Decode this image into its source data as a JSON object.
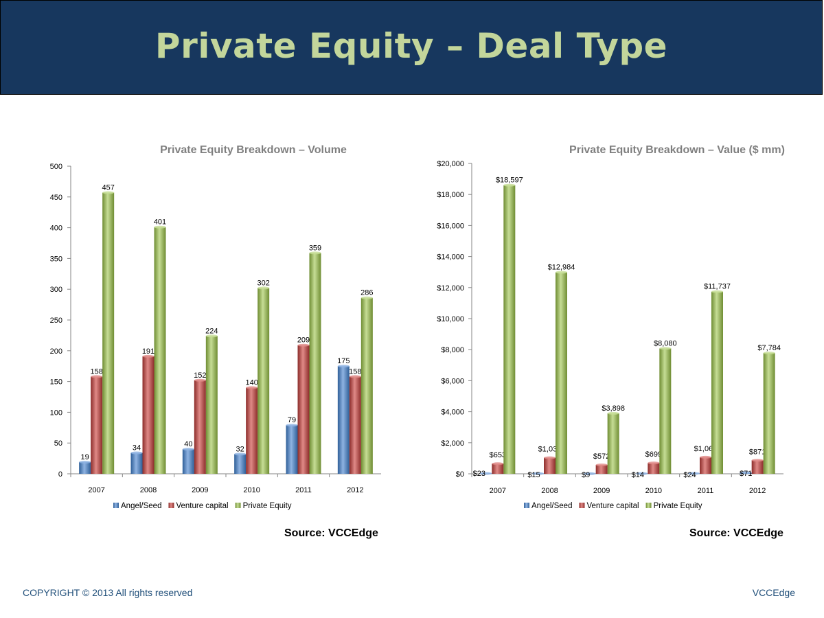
{
  "slide": {
    "title": "Private Equity – Deal Type",
    "footer_left": "COPYRIGHT © 2013 All rights reserved",
    "footer_right": "VCCEdge"
  },
  "colors": {
    "header_bg": "#17375e",
    "title": "#c3d69b",
    "angel_seed": "#4f81bd",
    "venture_capital": "#c0504d",
    "private_equity": "#9bbb59"
  },
  "chart_data": [
    {
      "type": "bar",
      "title": "Private Equity Breakdown – Volume",
      "categories": [
        "2007",
        "2008",
        "2009",
        "2010",
        "2011",
        "2012"
      ],
      "series": [
        {
          "name": "Angel/Seed",
          "values": [
            19,
            34,
            40,
            32,
            79,
            175
          ]
        },
        {
          "name": "Venture capital",
          "values": [
            158,
            191,
            152,
            140,
            209,
            158
          ]
        },
        {
          "name": "Private Equity",
          "values": [
            457,
            401,
            224,
            302,
            359,
            286
          ]
        }
      ],
      "data_labels": [
        [
          "19",
          "34",
          "40",
          "32",
          "79",
          "175"
        ],
        [
          "158",
          "191",
          "152",
          "140",
          "209",
          "158"
        ],
        [
          "457",
          "401",
          "224",
          "302",
          "359",
          "286"
        ]
      ],
      "ylim": [
        0,
        500
      ],
      "yticks": [
        0,
        50,
        100,
        150,
        200,
        250,
        300,
        350,
        400,
        450,
        500
      ],
      "ytick_labels": [
        "0",
        "50",
        "100",
        "150",
        "200",
        "250",
        "300",
        "350",
        "400",
        "450",
        "500"
      ],
      "legend": "bottom",
      "grid": false,
      "source": "Source: VCCEdge"
    },
    {
      "type": "bar",
      "title": "Private Equity Breakdown – Value ($ mm)",
      "categories": [
        "2007",
        "2008",
        "2009",
        "2010",
        "2011",
        "2012"
      ],
      "series": [
        {
          "name": "Angel/Seed",
          "values": [
            23,
            15,
            9,
            14,
            24,
            71
          ]
        },
        {
          "name": "Venture capital",
          "values": [
            653,
            1034,
            572,
            699,
            1068,
            871
          ]
        },
        {
          "name": "Private Equity",
          "values": [
            18597,
            12984,
            3898,
            8080,
            11737,
            7784
          ]
        }
      ],
      "data_labels": [
        [
          "$23",
          "$15",
          "$9",
          "$14",
          "$24",
          "$71"
        ],
        [
          "$653",
          "$1,034",
          "$572",
          "$699",
          "$1,068",
          "$871"
        ],
        [
          "$18,597",
          "$12,984",
          "$3,898",
          "$8,080",
          "$11,737",
          "$7,784"
        ]
      ],
      "ylim": [
        0,
        20000
      ],
      "yticks": [
        0,
        2000,
        4000,
        6000,
        8000,
        10000,
        12000,
        14000,
        16000,
        18000,
        20000
      ],
      "ytick_labels": [
        "$0",
        "$2,000",
        "$4,000",
        "$6,000",
        "$8,000",
        "$10,000",
        "$12,000",
        "$14,000",
        "$16,000",
        "$18,000",
        "$20,000"
      ],
      "legend": "bottom",
      "grid": false,
      "source": "Source: VCCEdge"
    }
  ]
}
